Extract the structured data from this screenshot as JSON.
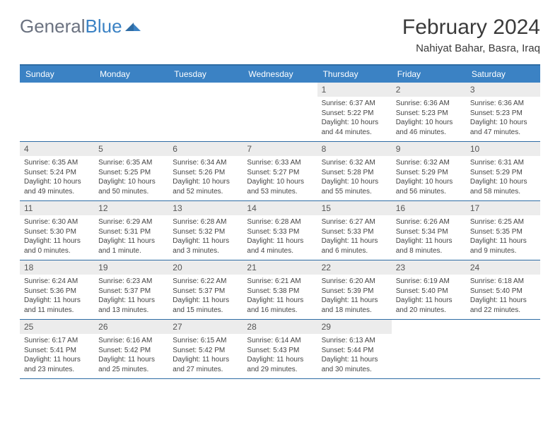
{
  "logo": {
    "text1": "General",
    "text2": "Blue"
  },
  "header": {
    "month": "February 2024",
    "location": "Nahiyat Bahar, Basra, Iraq"
  },
  "colors": {
    "header_bg": "#3b82c4",
    "border": "#2e6ca4",
    "daynum_bg": "#ececec",
    "text": "#333333"
  },
  "dayNames": [
    "Sunday",
    "Monday",
    "Tuesday",
    "Wednesday",
    "Thursday",
    "Friday",
    "Saturday"
  ],
  "weeks": [
    [
      {
        "empty": true
      },
      {
        "empty": true
      },
      {
        "empty": true
      },
      {
        "empty": true
      },
      {
        "day": "1",
        "sunrise": "6:37 AM",
        "sunset": "5:22 PM",
        "daylight": "10 hours and 44 minutes."
      },
      {
        "day": "2",
        "sunrise": "6:36 AM",
        "sunset": "5:23 PM",
        "daylight": "10 hours and 46 minutes."
      },
      {
        "day": "3",
        "sunrise": "6:36 AM",
        "sunset": "5:23 PM",
        "daylight": "10 hours and 47 minutes."
      }
    ],
    [
      {
        "day": "4",
        "sunrise": "6:35 AM",
        "sunset": "5:24 PM",
        "daylight": "10 hours and 49 minutes."
      },
      {
        "day": "5",
        "sunrise": "6:35 AM",
        "sunset": "5:25 PM",
        "daylight": "10 hours and 50 minutes."
      },
      {
        "day": "6",
        "sunrise": "6:34 AM",
        "sunset": "5:26 PM",
        "daylight": "10 hours and 52 minutes."
      },
      {
        "day": "7",
        "sunrise": "6:33 AM",
        "sunset": "5:27 PM",
        "daylight": "10 hours and 53 minutes."
      },
      {
        "day": "8",
        "sunrise": "6:32 AM",
        "sunset": "5:28 PM",
        "daylight": "10 hours and 55 minutes."
      },
      {
        "day": "9",
        "sunrise": "6:32 AM",
        "sunset": "5:29 PM",
        "daylight": "10 hours and 56 minutes."
      },
      {
        "day": "10",
        "sunrise": "6:31 AM",
        "sunset": "5:29 PM",
        "daylight": "10 hours and 58 minutes."
      }
    ],
    [
      {
        "day": "11",
        "sunrise": "6:30 AM",
        "sunset": "5:30 PM",
        "daylight": "11 hours and 0 minutes."
      },
      {
        "day": "12",
        "sunrise": "6:29 AM",
        "sunset": "5:31 PM",
        "daylight": "11 hours and 1 minute."
      },
      {
        "day": "13",
        "sunrise": "6:28 AM",
        "sunset": "5:32 PM",
        "daylight": "11 hours and 3 minutes."
      },
      {
        "day": "14",
        "sunrise": "6:28 AM",
        "sunset": "5:33 PM",
        "daylight": "11 hours and 4 minutes."
      },
      {
        "day": "15",
        "sunrise": "6:27 AM",
        "sunset": "5:33 PM",
        "daylight": "11 hours and 6 minutes."
      },
      {
        "day": "16",
        "sunrise": "6:26 AM",
        "sunset": "5:34 PM",
        "daylight": "11 hours and 8 minutes."
      },
      {
        "day": "17",
        "sunrise": "6:25 AM",
        "sunset": "5:35 PM",
        "daylight": "11 hours and 9 minutes."
      }
    ],
    [
      {
        "day": "18",
        "sunrise": "6:24 AM",
        "sunset": "5:36 PM",
        "daylight": "11 hours and 11 minutes."
      },
      {
        "day": "19",
        "sunrise": "6:23 AM",
        "sunset": "5:37 PM",
        "daylight": "11 hours and 13 minutes."
      },
      {
        "day": "20",
        "sunrise": "6:22 AM",
        "sunset": "5:37 PM",
        "daylight": "11 hours and 15 minutes."
      },
      {
        "day": "21",
        "sunrise": "6:21 AM",
        "sunset": "5:38 PM",
        "daylight": "11 hours and 16 minutes."
      },
      {
        "day": "22",
        "sunrise": "6:20 AM",
        "sunset": "5:39 PM",
        "daylight": "11 hours and 18 minutes."
      },
      {
        "day": "23",
        "sunrise": "6:19 AM",
        "sunset": "5:40 PM",
        "daylight": "11 hours and 20 minutes."
      },
      {
        "day": "24",
        "sunrise": "6:18 AM",
        "sunset": "5:40 PM",
        "daylight": "11 hours and 22 minutes."
      }
    ],
    [
      {
        "day": "25",
        "sunrise": "6:17 AM",
        "sunset": "5:41 PM",
        "daylight": "11 hours and 23 minutes."
      },
      {
        "day": "26",
        "sunrise": "6:16 AM",
        "sunset": "5:42 PM",
        "daylight": "11 hours and 25 minutes."
      },
      {
        "day": "27",
        "sunrise": "6:15 AM",
        "sunset": "5:42 PM",
        "daylight": "11 hours and 27 minutes."
      },
      {
        "day": "28",
        "sunrise": "6:14 AM",
        "sunset": "5:43 PM",
        "daylight": "11 hours and 29 minutes."
      },
      {
        "day": "29",
        "sunrise": "6:13 AM",
        "sunset": "5:44 PM",
        "daylight": "11 hours and 30 minutes."
      },
      {
        "empty": true
      },
      {
        "empty": true
      }
    ]
  ],
  "labels": {
    "sunrise": "Sunrise:",
    "sunset": "Sunset:",
    "daylight": "Daylight:"
  }
}
